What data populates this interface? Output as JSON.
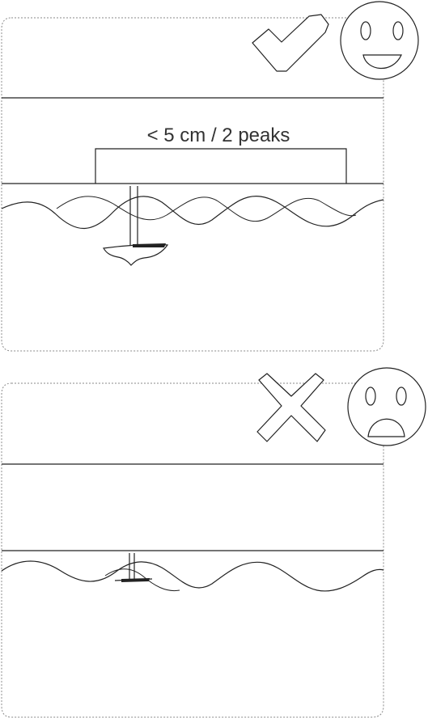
{
  "panels": [
    {
      "id": "good",
      "verdict": "correct",
      "verdict_icon": "checkmark-icon",
      "face_icon": "happy-face-icon",
      "measurement_label": "< 5 cm / 2 peaks"
    },
    {
      "id": "bad",
      "verdict": "incorrect",
      "verdict_icon": "cross-icon",
      "face_icon": "sad-face-icon",
      "measurement_label": ""
    }
  ],
  "colors": {
    "stroke": "#222222",
    "frame": "#8a8a8a",
    "icon_fill": "#ffffff"
  }
}
